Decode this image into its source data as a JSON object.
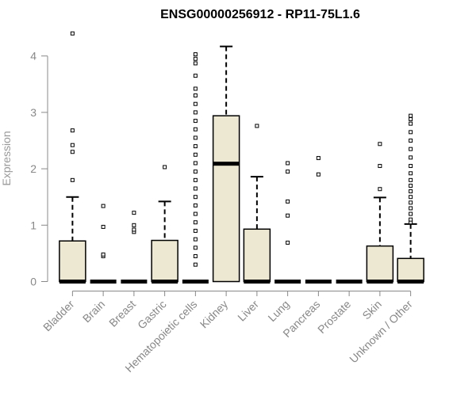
{
  "chart_data": {
    "type": "box",
    "title": "ENSG00000256912 - RP11-75L1.6",
    "xlabel": "",
    "ylabel": "Expression",
    "ylim": [
      0,
      4.4
    ],
    "yticks": [
      "0",
      "1",
      "2",
      "3",
      "4"
    ],
    "grid": false,
    "colors": {
      "box_fill": "#ede8d1",
      "stroke": "#000000",
      "axis": "#888888"
    },
    "categories": [
      "Bladder",
      "Brain",
      "Breast",
      "Gastric",
      "Hematopoietic cells",
      "Kidney",
      "Liver",
      "Lung",
      "Pancreas",
      "Prostate",
      "Skin",
      "Unknown / Other"
    ],
    "boxes": [
      {
        "q1": 0,
        "median": 0,
        "q3": 0.72,
        "whisker_low": 0,
        "whisker_high": 1.5,
        "outliers": [
          1.8,
          2.3,
          2.42,
          2.68,
          4.4
        ]
      },
      {
        "q1": 0,
        "median": 0,
        "q3": 0,
        "whisker_low": 0,
        "whisker_high": 0,
        "outliers": [
          0.45,
          0.48,
          0.97,
          1.34
        ]
      },
      {
        "q1": 0,
        "median": 0,
        "q3": 0,
        "whisker_low": 0,
        "whisker_high": 0,
        "outliers": [
          0.88,
          0.92,
          1.0,
          1.22
        ]
      },
      {
        "q1": 0,
        "median": 0,
        "q3": 0.73,
        "whisker_low": 0,
        "whisker_high": 1.42,
        "outliers": [
          2.03
        ]
      },
      {
        "q1": 0,
        "median": 0,
        "q3": 0,
        "whisker_low": 0,
        "whisker_high": 0,
        "outliers": [
          0.3,
          0.45,
          0.6,
          0.75,
          0.9,
          1.05,
          1.2,
          1.35,
          1.5,
          1.65,
          1.8,
          1.95,
          2.1,
          2.25,
          2.4,
          2.55,
          2.7,
          2.85,
          3.0,
          3.15,
          3.3,
          3.42,
          3.65,
          3.87,
          3.95,
          4.03
        ]
      },
      {
        "q1": 0,
        "median": 2.09,
        "q3": 2.94,
        "whisker_low": 0,
        "whisker_high": 4.17,
        "outliers": []
      },
      {
        "q1": 0,
        "median": 0,
        "q3": 0.93,
        "whisker_low": 0,
        "whisker_high": 1.86,
        "outliers": [
          2.76
        ]
      },
      {
        "q1": 0,
        "median": 0,
        "q3": 0,
        "whisker_low": 0,
        "whisker_high": 0,
        "outliers": [
          0.69,
          1.17,
          1.42,
          1.95,
          2.1
        ]
      },
      {
        "q1": 0,
        "median": 0,
        "q3": 0,
        "whisker_low": 0,
        "whisker_high": 0,
        "outliers": [
          1.9,
          2.19
        ]
      },
      {
        "q1": 0,
        "median": 0,
        "q3": 0,
        "whisker_low": 0,
        "whisker_high": 0,
        "outliers": []
      },
      {
        "q1": 0,
        "median": 0,
        "q3": 0.63,
        "whisker_low": 0,
        "whisker_high": 1.49,
        "outliers": [
          1.64,
          2.05,
          2.44
        ]
      },
      {
        "q1": 0,
        "median": 0,
        "q3": 0.41,
        "whisker_low": 0,
        "whisker_high": 1.02,
        "outliers": [
          1.05,
          1.1,
          1.2,
          1.3,
          1.4,
          1.5,
          1.6,
          1.7,
          1.8,
          1.92,
          2.05,
          2.2,
          2.35,
          2.5,
          2.65,
          2.8,
          2.88,
          2.94
        ]
      }
    ]
  }
}
